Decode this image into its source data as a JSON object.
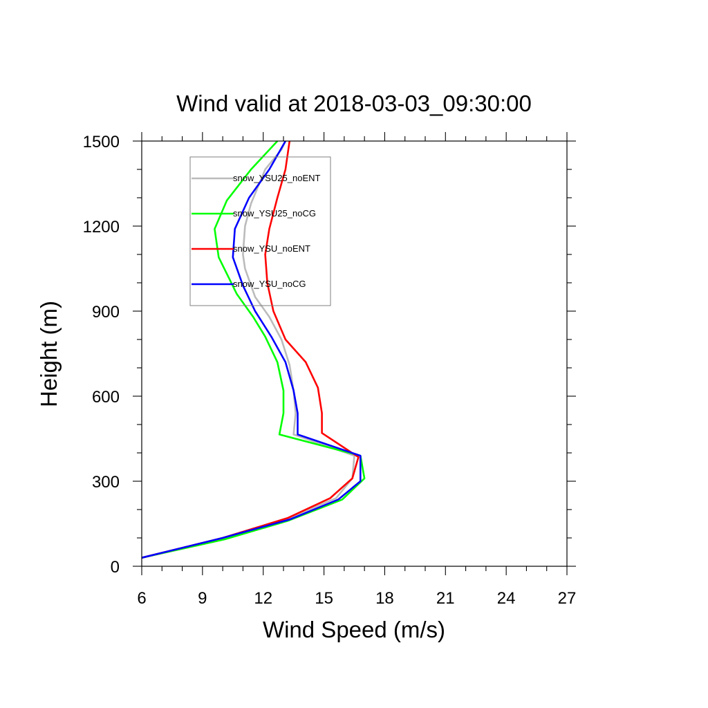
{
  "chart_data": {
    "type": "line",
    "title": "Wind valid at 2018-03-03_09:30:00",
    "xlabel": "Wind Speed (m/s)",
    "ylabel": "Height (m)",
    "xlim": [
      6,
      27
    ],
    "ylim": [
      0,
      1500
    ],
    "xticks": [
      6,
      9,
      12,
      15,
      18,
      21,
      24,
      27
    ],
    "yticks": [
      0,
      300,
      600,
      900,
      1200,
      1500
    ],
    "x_minor_step": 1,
    "y_minor_step": 100,
    "legend_position": "top-left",
    "series": [
      {
        "name": "snow_YSU25_noENT",
        "color": "#bbbbbb",
        "points": [
          [
            6.0,
            30
          ],
          [
            10.0,
            100
          ],
          [
            13.1,
            165
          ],
          [
            15.6,
            240
          ],
          [
            16.4,
            310
          ],
          [
            16.5,
            390
          ],
          [
            13.5,
            465
          ],
          [
            13.6,
            540
          ],
          [
            13.5,
            620
          ],
          [
            13.3,
            710
          ],
          [
            12.9,
            800
          ],
          [
            12.3,
            880
          ],
          [
            11.6,
            950
          ],
          [
            11.1,
            1050
          ],
          [
            11.0,
            1100
          ],
          [
            11.1,
            1200
          ],
          [
            11.4,
            1280
          ],
          [
            12.1,
            1400
          ],
          [
            12.9,
            1470
          ],
          [
            13.1,
            1500
          ]
        ]
      },
      {
        "name": "snow_YSU25_noCG",
        "color": "#00ff00",
        "points": [
          [
            6.0,
            30
          ],
          [
            10.1,
            95
          ],
          [
            13.2,
            160
          ],
          [
            15.9,
            235
          ],
          [
            17.0,
            310
          ],
          [
            16.8,
            390
          ],
          [
            12.8,
            465
          ],
          [
            13.0,
            540
          ],
          [
            13.0,
            620
          ],
          [
            12.7,
            720
          ],
          [
            12.1,
            810
          ],
          [
            11.5,
            880
          ],
          [
            10.7,
            960
          ],
          [
            9.8,
            1090
          ],
          [
            9.6,
            1190
          ],
          [
            10.2,
            1290
          ],
          [
            11.4,
            1400
          ],
          [
            12.7,
            1500
          ]
        ]
      },
      {
        "name": "snow_YSU_noENT",
        "color": "#ff0000",
        "points": [
          [
            6.0,
            30
          ],
          [
            10.0,
            100
          ],
          [
            13.2,
            170
          ],
          [
            15.3,
            240
          ],
          [
            16.4,
            310
          ],
          [
            16.7,
            385
          ],
          [
            14.9,
            470
          ],
          [
            14.9,
            540
          ],
          [
            14.7,
            630
          ],
          [
            14.1,
            720
          ],
          [
            13.1,
            800
          ],
          [
            12.5,
            900
          ],
          [
            12.2,
            1000
          ],
          [
            12.1,
            1100
          ],
          [
            12.3,
            1190
          ],
          [
            12.7,
            1300
          ],
          [
            13.1,
            1400
          ],
          [
            13.3,
            1500
          ]
        ]
      },
      {
        "name": "snow_YSU_noCG",
        "color": "#0000ff",
        "points": [
          [
            6.0,
            30
          ],
          [
            10.0,
            100
          ],
          [
            13.3,
            165
          ],
          [
            15.7,
            235
          ],
          [
            16.8,
            300
          ],
          [
            16.8,
            390
          ],
          [
            13.7,
            465
          ],
          [
            13.7,
            540
          ],
          [
            13.5,
            620
          ],
          [
            13.1,
            720
          ],
          [
            12.4,
            810
          ],
          [
            11.6,
            900
          ],
          [
            11.0,
            990
          ],
          [
            10.5,
            1090
          ],
          [
            10.6,
            1190
          ],
          [
            11.3,
            1300
          ],
          [
            12.3,
            1400
          ],
          [
            13.1,
            1500
          ]
        ]
      }
    ]
  }
}
